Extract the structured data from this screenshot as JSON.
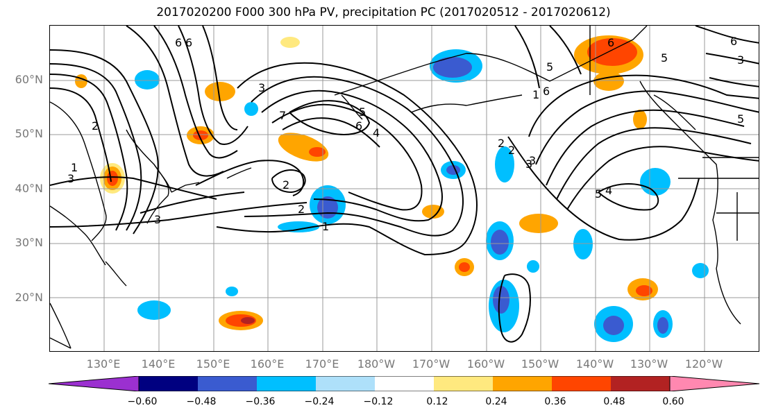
{
  "title": "2017020200 F000 300 hPa PV, precipitation PC (2017020512 - 2017020612)",
  "lat_labels": [
    "60°N",
    "50°N",
    "40°N",
    "30°N",
    "20°N"
  ],
  "lon_labels": [
    "130°E",
    "140°E",
    "150°E",
    "160°E",
    "170°E",
    "180°W",
    "170°W",
    "160°W",
    "150°W",
    "140°W",
    "130°W",
    "120°W"
  ],
  "colorbar": {
    "ticks": [
      "−0.60",
      "−0.48",
      "−0.36",
      "−0.24",
      "−0.12",
      "0.12",
      "0.24",
      "0.36",
      "0.48",
      "0.60"
    ],
    "colors": [
      "#9b30d0",
      "#000080",
      "#3a5bd0",
      "#00bfff",
      "#aee0fa",
      "#ffffff",
      "#ffe97f",
      "#ffa500",
      "#ff4500",
      "#b22222",
      "#ff88b0"
    ]
  },
  "contour_labels": [
    "6",
    "6",
    "5",
    "4",
    "3",
    "2",
    "1",
    "7",
    "6",
    "5",
    "4",
    "2",
    "3",
    "2",
    "1",
    "3",
    "2",
    "6",
    "5",
    "3",
    "2",
    "1",
    "6",
    "3",
    "5",
    "5",
    "4",
    "3",
    "6",
    "5"
  ]
}
